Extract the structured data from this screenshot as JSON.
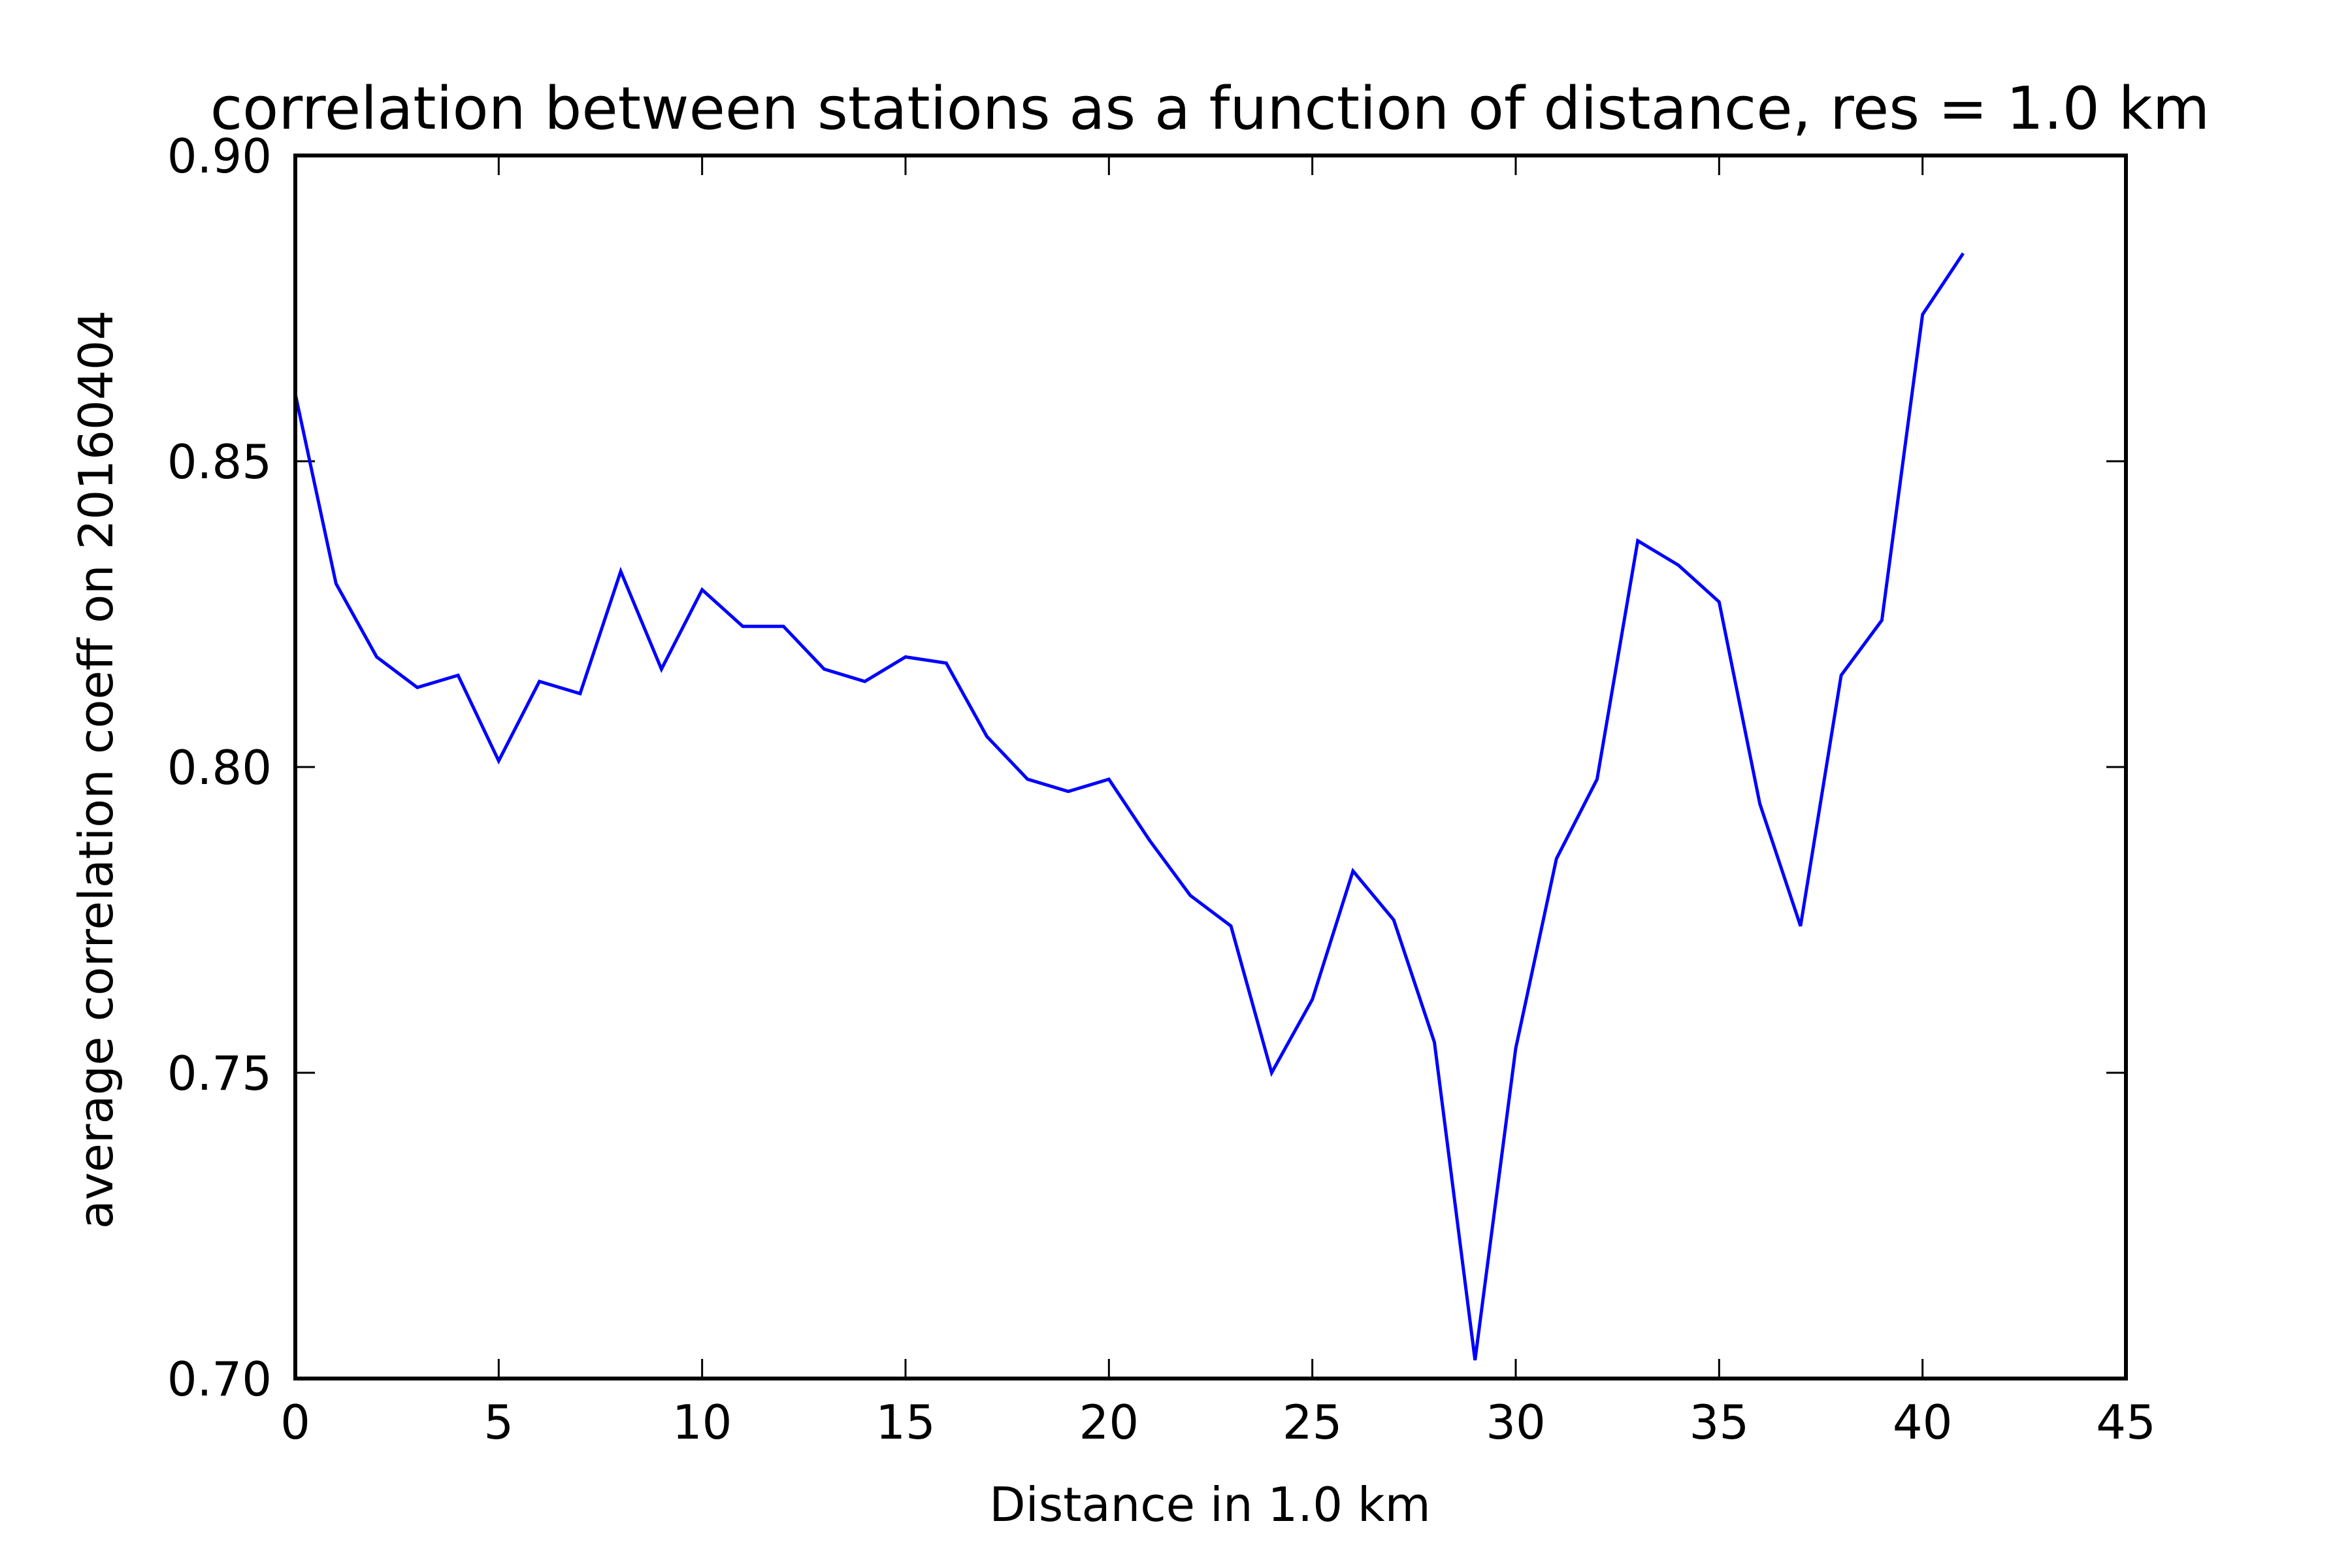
{
  "chart_data": {
    "type": "line",
    "title": "correlation between stations as a function of distance, res = 1.0 km",
    "xlabel": "Distance in 1.0 km",
    "ylabel": "average correlation coeff on 20160404",
    "xlim": [
      0,
      45
    ],
    "ylim": [
      0.7,
      0.9
    ],
    "xticks": [
      0,
      5,
      10,
      15,
      20,
      25,
      30,
      35,
      40,
      45
    ],
    "xtick_labels": [
      "0",
      "5",
      "10",
      "15",
      "20",
      "25",
      "30",
      "35",
      "40",
      "45"
    ],
    "yticks": [
      0.7,
      0.75,
      0.8,
      0.85,
      0.9
    ],
    "ytick_labels": [
      "0.70",
      "0.75",
      "0.80",
      "0.85",
      "0.90"
    ],
    "grid": false,
    "legend": "none",
    "series": [
      {
        "color": "#0000ff",
        "x": [
          0,
          1,
          2,
          3,
          4,
          5,
          6,
          7,
          8,
          9,
          10,
          11,
          12,
          13,
          14,
          15,
          16,
          17,
          18,
          19,
          20,
          21,
          22,
          23,
          24,
          25,
          26,
          27,
          28,
          29,
          30,
          31,
          32,
          33,
          34,
          35,
          36,
          37,
          38,
          39,
          40,
          41
        ],
        "y": [
          0.861,
          0.83,
          0.818,
          0.813,
          0.815,
          0.801,
          0.814,
          0.812,
          0.832,
          0.816,
          0.829,
          0.823,
          0.823,
          0.816,
          0.814,
          0.818,
          0.817,
          0.805,
          0.798,
          0.796,
          0.798,
          0.788,
          0.779,
          0.774,
          0.75,
          0.762,
          0.783,
          0.775,
          0.755,
          0.703,
          0.754,
          0.785,
          0.798,
          0.837,
          0.833,
          0.827,
          0.794,
          0.774,
          0.815,
          0.824,
          0.874,
          0.884
        ]
      }
    ]
  }
}
